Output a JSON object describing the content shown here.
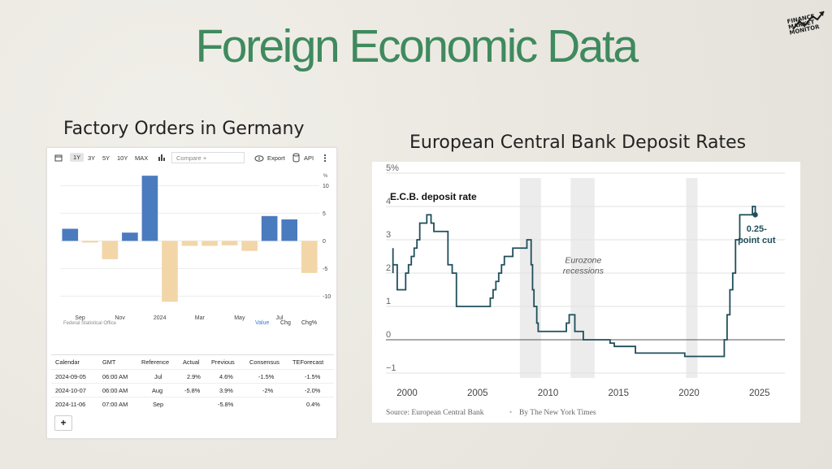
{
  "slide": {
    "title": "Foreign Economic Data",
    "logo_text": [
      "FINANCE",
      "MARKET",
      "MONITOR"
    ],
    "logo_icon": "chart-arrow-icon"
  },
  "left_panel": {
    "title": "Factory Orders in Germany",
    "toolbar": {
      "calendar_icon": "calendar-icon",
      "ranges": [
        "1Y",
        "3Y",
        "5Y",
        "10Y",
        "MAX"
      ],
      "selected_range": "1Y",
      "chart_type_icon": "bar-chart-icon",
      "compare_placeholder": "Compare +",
      "export_icon": "cloud-download-icon",
      "export_label": "Export",
      "api_icon": "database-icon",
      "api_label": "API",
      "more_icon": "more-vertical-icon"
    },
    "unit_label": "%",
    "source": "Federal Statistical Office",
    "view_buttons": [
      "Value",
      "Chg",
      "Chg%"
    ],
    "selected_view": "Value",
    "table": {
      "headers": [
        "Calendar",
        "GMT",
        "Reference",
        "Actual",
        "Previous",
        "Consensus",
        "TEForecast"
      ],
      "rows": [
        [
          "2024-09-05",
          "06:00 AM",
          "Jul",
          "2.9%",
          "4.6%",
          "-1.5%",
          "-1.5%"
        ],
        [
          "2024-10-07",
          "06:00 AM",
          "Aug",
          "-5.8%",
          "3.9%",
          "-2%",
          "-2.0%"
        ],
        [
          "2024-11-06",
          "07:00 AM",
          "Sep",
          "",
          "-5.8%",
          "",
          "0.4%"
        ]
      ],
      "add_button": "+"
    }
  },
  "right_panel": {
    "title": "European Central Bank Deposit Rates",
    "source_line": [
      "Source: European Central Bank",
      "By The New York Times"
    ]
  },
  "chart_data": [
    {
      "type": "bar",
      "title": "Factory Orders in Germany",
      "ylabel": "%",
      "ylim": [
        -12,
        13
      ],
      "yticks": [
        10,
        5,
        0,
        -5,
        -10
      ],
      "x_tick_labels": [
        "Sep",
        "Nov",
        "2024",
        "Mar",
        "May",
        "Jul"
      ],
      "x_tick_after_bar": [
        1,
        3,
        5,
        7,
        9,
        11
      ],
      "values": [
        2.2,
        -0.3,
        -3.3,
        1.5,
        11.8,
        -11,
        -0.9,
        -0.9,
        -0.8,
        -1.8,
        4.5,
        3.9,
        -5.8
      ],
      "colors": {
        "positive": "#4b7bbf",
        "negative": "#f2d6a8"
      },
      "grid": "horizontal"
    },
    {
      "type": "line",
      "title": "E.C.B. deposit rate",
      "ylim": [
        -1,
        5
      ],
      "yticks": [
        5,
        4,
        3,
        2,
        1,
        0,
        -1
      ],
      "ytick_labels": [
        "5%",
        "4",
        "3",
        "2",
        "1",
        "0",
        "−1"
      ],
      "xlim": [
        1998.5,
        2026.8
      ],
      "xticks": [
        2000,
        2005,
        2010,
        2015,
        2020,
        2025
      ],
      "annotations": [
        {
          "text": "Eurozone recessions",
          "x": 2012.5,
          "y": 2.3
        },
        {
          "text": "0.25-point cut",
          "x": 2024.8,
          "y": 3.25
        }
      ],
      "shaded_ranges": [
        [
          2008.0,
          2009.5
        ],
        [
          2011.6,
          2013.3
        ],
        [
          2019.8,
          2020.6
        ]
      ],
      "line_color": "#1f4e5a",
      "series": [
        {
          "x": [
            1999.0,
            1999.0,
            1999.0,
            1999.3,
            1999.9,
            1999.9,
            2000.1,
            2000.3,
            2000.5,
            2000.7,
            2000.9,
            2001.4,
            2001.7,
            2001.9,
            2002.9,
            2003.2,
            2003.5,
            2005.9,
            2006.1,
            2006.3,
            2006.5,
            2006.7,
            2006.9,
            2007.5,
            2008.5,
            2008.8,
            2008.9,
            2009.0,
            2009.2,
            2009.3,
            2011.3,
            2011.5,
            2011.9,
            2012.5,
            2013.8,
            2014.4,
            2014.7,
            2016.2,
            2019.7,
            2022.5,
            2022.7,
            2022.9,
            2023.1,
            2023.3,
            2023.6,
            2024.5,
            2024.7
          ],
          "y": [
            2.75,
            2.0,
            2.25,
            1.5,
            2.0,
            2.0,
            2.25,
            2.5,
            2.75,
            3.0,
            3.5,
            3.75,
            3.5,
            3.25,
            2.25,
            2.0,
            1.0,
            1.25,
            1.5,
            1.75,
            2.0,
            2.25,
            2.5,
            2.75,
            3.0,
            2.25,
            1.5,
            1.0,
            0.5,
            0.25,
            0.5,
            0.75,
            0.25,
            0.0,
            0.0,
            -0.1,
            -0.2,
            -0.4,
            -0.5,
            0.0,
            0.75,
            1.5,
            2.0,
            3.0,
            3.75,
            4.0,
            3.75
          ]
        }
      ]
    }
  ]
}
